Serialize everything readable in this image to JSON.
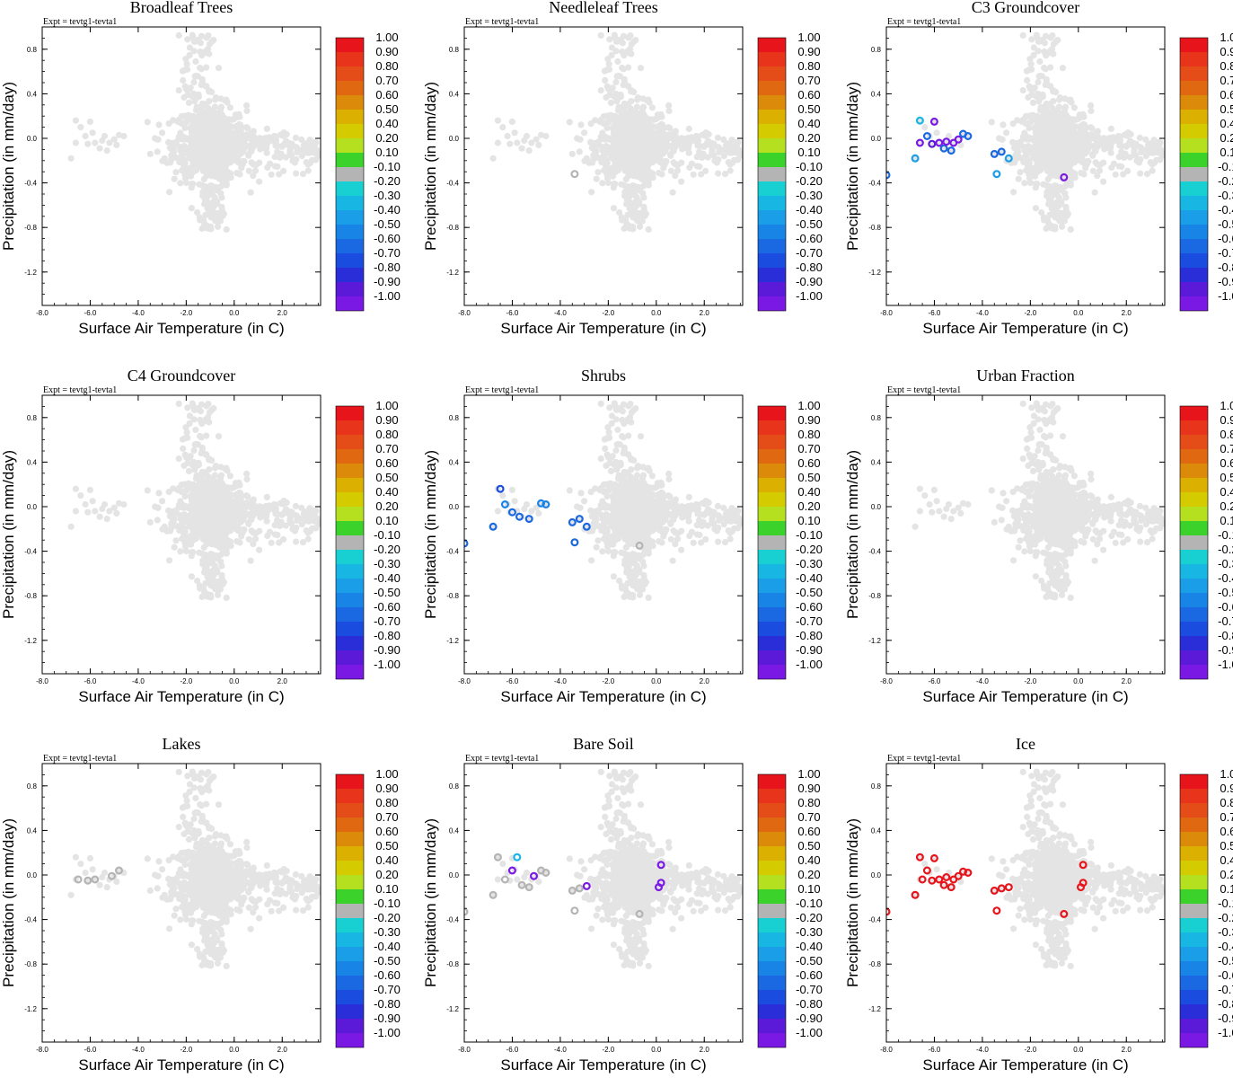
{
  "figure": {
    "experiment_label": "Expt = tevtg1-tevta1",
    "xlabel": "Surface Air Temperature (in C)",
    "ylabel": "Precipitation (in mm/day)",
    "colorbar": {
      "labels": [
        "1.00",
        "0.90",
        "0.80",
        "0.70",
        "0.60",
        "0.50",
        "0.40",
        "0.20",
        "0.10",
        "-0.10",
        "-0.20",
        "-0.30",
        "-0.40",
        "-0.50",
        "-0.60",
        "-0.70",
        "-0.80",
        "-0.90",
        "-1.00"
      ],
      "colors": [
        "#e8141c",
        "#e8341a",
        "#e44c18",
        "#e06810",
        "#dc8a0a",
        "#dcb000",
        "#d4cc00",
        "#b4e020",
        "#3cd22c",
        "#b4b4b4",
        "#18cfd2",
        "#18b6e2",
        "#1a9ee8",
        "#1884e6",
        "#1a68e2",
        "#1a4ce0",
        "#2a2ed8",
        "#5a1ad8",
        "#7a18e4"
      ]
    },
    "background_color": "#e4e4e4"
  },
  "chart_data": [
    {
      "type": "scatter",
      "title": "Broadleaf Trees",
      "xlim": [
        -8,
        3.6
      ],
      "ylim": [
        -1.5,
        1.0
      ],
      "xticks": [
        "-8.0",
        "-6.0",
        "-4.0",
        "-2.0",
        "0.0",
        "2.0"
      ],
      "yticks": [
        "0.8",
        "0.4",
        "0.0",
        "-0.4",
        "-0.8",
        "-1.2"
      ],
      "highlight": []
    },
    {
      "type": "scatter",
      "title": "Needleleaf Trees",
      "xlim": [
        -8,
        3.6
      ],
      "ylim": [
        -1.5,
        1.0
      ],
      "xticks": [
        "-8.0",
        "-6.0",
        "-4.0",
        "-2.0",
        "0.0",
        "2.0"
      ],
      "yticks": [
        "0.8",
        "0.4",
        "0.0",
        "-0.4",
        "-0.8",
        "-1.2"
      ],
      "highlight": [
        {
          "x": -3.4,
          "y": -0.32,
          "v": -0.05
        }
      ]
    },
    {
      "type": "scatter",
      "title": "C3 Groundcover",
      "xlim": [
        -8,
        3.6
      ],
      "ylim": [
        -1.5,
        1.0
      ],
      "xticks": [
        "-8.0",
        "-6.0",
        "-4.0",
        "-2.0",
        "0.0",
        "2.0"
      ],
      "yticks": [
        "0.8",
        "0.4",
        "0.0",
        "-0.4",
        "-0.8",
        "-1.2"
      ],
      "highlight": [
        {
          "x": -8.0,
          "y": -0.33,
          "v": -0.5
        },
        {
          "x": -6.8,
          "y": -0.18,
          "v": -0.3
        },
        {
          "x": -6.6,
          "y": 0.16,
          "v": -0.2
        },
        {
          "x": -6.6,
          "y": -0.04,
          "v": -0.9
        },
        {
          "x": -6.0,
          "y": 0.15,
          "v": -0.9
        },
        {
          "x": -6.3,
          "y": 0.02,
          "v": -0.5
        },
        {
          "x": -6.1,
          "y": -0.05,
          "v": -0.8
        },
        {
          "x": -5.8,
          "y": -0.04,
          "v": -0.9
        },
        {
          "x": -5.6,
          "y": -0.09,
          "v": -0.5
        },
        {
          "x": -5.5,
          "y": -0.03,
          "v": -0.9
        },
        {
          "x": -5.3,
          "y": -0.11,
          "v": -0.5
        },
        {
          "x": -5.2,
          "y": -0.04,
          "v": -0.9
        },
        {
          "x": -5.0,
          "y": -0.01,
          "v": -0.9
        },
        {
          "x": -4.8,
          "y": 0.04,
          "v": -0.5
        },
        {
          "x": -4.6,
          "y": 0.02,
          "v": -0.5
        },
        {
          "x": -3.5,
          "y": -0.14,
          "v": -0.5
        },
        {
          "x": -3.4,
          "y": -0.32,
          "v": -0.3
        },
        {
          "x": -3.2,
          "y": -0.12,
          "v": -0.5
        },
        {
          "x": -2.9,
          "y": -0.18,
          "v": -0.3
        },
        {
          "x": -0.6,
          "y": -0.35,
          "v": -0.9
        }
      ]
    },
    {
      "type": "scatter",
      "title": "C4 Groundcover",
      "xlim": [
        -8,
        3.6
      ],
      "ylim": [
        -1.5,
        1.0
      ],
      "xticks": [
        "-8.0",
        "-6.0",
        "-4.0",
        "-2.0",
        "0.0",
        "2.0"
      ],
      "yticks": [
        "0.8",
        "0.4",
        "0.0",
        "-0.4",
        "-0.8",
        "-1.2"
      ],
      "highlight": []
    },
    {
      "type": "scatter",
      "title": "Shrubs",
      "xlim": [
        -8,
        3.6
      ],
      "ylim": [
        -1.5,
        1.0
      ],
      "xticks": [
        "-8.0",
        "-6.0",
        "-4.0",
        "-2.0",
        "0.0",
        "2.0"
      ],
      "yticks": [
        "0.8",
        "0.4",
        "0.0",
        "-0.4",
        "-0.8",
        "-1.2"
      ],
      "highlight": [
        {
          "x": -8.0,
          "y": -0.33,
          "v": -0.6
        },
        {
          "x": -6.8,
          "y": -0.18,
          "v": -0.5
        },
        {
          "x": -6.5,
          "y": 0.16,
          "v": -0.7
        },
        {
          "x": -6.3,
          "y": 0.02,
          "v": -0.4
        },
        {
          "x": -6.0,
          "y": -0.05,
          "v": -0.5
        },
        {
          "x": -5.7,
          "y": -0.09,
          "v": -0.5
        },
        {
          "x": -5.3,
          "y": -0.11,
          "v": -0.5
        },
        {
          "x": -4.8,
          "y": 0.03,
          "v": -0.4
        },
        {
          "x": -4.6,
          "y": 0.02,
          "v": -0.4
        },
        {
          "x": -3.5,
          "y": -0.14,
          "v": -0.5
        },
        {
          "x": -3.4,
          "y": -0.32,
          "v": -0.6
        },
        {
          "x": -3.2,
          "y": -0.11,
          "v": -0.6
        },
        {
          "x": -2.9,
          "y": -0.18,
          "v": -0.5
        },
        {
          "x": -0.7,
          "y": -0.35,
          "v": -0.05
        }
      ]
    },
    {
      "type": "scatter",
      "title": "Urban Fraction",
      "xlim": [
        -8,
        3.6
      ],
      "ylim": [
        -1.5,
        1.0
      ],
      "xticks": [
        "-8.0",
        "-6.0",
        "-4.0",
        "-2.0",
        "0.0",
        "2.0"
      ],
      "yticks": [
        "0.8",
        "0.4",
        "0.0",
        "-0.4",
        "-0.8",
        "-1.2"
      ],
      "highlight": []
    },
    {
      "type": "scatter",
      "title": "Lakes",
      "xlim": [
        -8,
        3.6
      ],
      "ylim": [
        -1.5,
        1.0
      ],
      "xticks": [
        "-8.0",
        "-6.0",
        "-4.0",
        "-2.0",
        "0.0",
        "2.0"
      ],
      "yticks": [
        "0.8",
        "0.4",
        "0.0",
        "-0.4",
        "-0.8",
        "-1.2"
      ],
      "highlight": [
        {
          "x": -6.5,
          "y": -0.04,
          "v": -0.05
        },
        {
          "x": -6.1,
          "y": -0.05,
          "v": -0.05
        },
        {
          "x": -5.8,
          "y": -0.04,
          "v": -0.05
        },
        {
          "x": -5.1,
          "y": -0.01,
          "v": -0.05
        },
        {
          "x": -4.8,
          "y": 0.04,
          "v": -0.05
        }
      ]
    },
    {
      "type": "scatter",
      "title": "Bare Soil",
      "xlim": [
        -8,
        3.6
      ],
      "ylim": [
        -1.5,
        1.0
      ],
      "xticks": [
        "-8.0",
        "-6.0",
        "-4.0",
        "-2.0",
        "0.0",
        "2.0"
      ],
      "yticks": [
        "0.8",
        "0.4",
        "0.0",
        "-0.4",
        "-0.8",
        "-1.2"
      ],
      "highlight": [
        {
          "x": -8.0,
          "y": -0.33,
          "v": -0.05
        },
        {
          "x": -6.8,
          "y": -0.18,
          "v": -0.05
        },
        {
          "x": -6.6,
          "y": 0.16,
          "v": -0.05
        },
        {
          "x": -6.3,
          "y": -0.04,
          "v": -0.05
        },
        {
          "x": -6.0,
          "y": 0.04,
          "v": -0.9
        },
        {
          "x": -5.8,
          "y": 0.16,
          "v": -0.2
        },
        {
          "x": -5.6,
          "y": -0.09,
          "v": -0.05
        },
        {
          "x": -5.3,
          "y": -0.11,
          "v": -0.05
        },
        {
          "x": -5.1,
          "y": -0.01,
          "v": -0.9
        },
        {
          "x": -4.8,
          "y": 0.04,
          "v": -0.05
        },
        {
          "x": -4.6,
          "y": 0.02,
          "v": -0.05
        },
        {
          "x": -3.5,
          "y": -0.14,
          "v": -0.05
        },
        {
          "x": -3.4,
          "y": -0.32,
          "v": -0.05
        },
        {
          "x": -3.2,
          "y": -0.12,
          "v": -0.05
        },
        {
          "x": -2.9,
          "y": -0.1,
          "v": -0.9
        },
        {
          "x": -0.7,
          "y": -0.35,
          "v": -0.05
        },
        {
          "x": 0.2,
          "y": 0.09,
          "v": -0.9
        },
        {
          "x": 0.2,
          "y": -0.07,
          "v": -0.9
        },
        {
          "x": 0.1,
          "y": -0.11,
          "v": -0.9
        }
      ]
    },
    {
      "type": "scatter",
      "title": "Ice",
      "xlim": [
        -8,
        3.6
      ],
      "ylim": [
        -1.5,
        1.0
      ],
      "xticks": [
        "-8.0",
        "-6.0",
        "-4.0",
        "-2.0",
        "0.0",
        "2.0"
      ],
      "yticks": [
        "0.8",
        "0.4",
        "0.0",
        "-0.4",
        "-0.8",
        "-1.2"
      ],
      "highlight": [
        {
          "x": -8.0,
          "y": -0.33,
          "v": 1.0
        },
        {
          "x": -6.8,
          "y": -0.18,
          "v": 1.0
        },
        {
          "x": -6.6,
          "y": 0.16,
          "v": 1.0
        },
        {
          "x": -6.5,
          "y": -0.04,
          "v": 1.0
        },
        {
          "x": -6.3,
          "y": 0.04,
          "v": 1.0
        },
        {
          "x": -6.0,
          "y": 0.15,
          "v": 1.0
        },
        {
          "x": -6.1,
          "y": -0.05,
          "v": 1.0
        },
        {
          "x": -5.8,
          "y": -0.04,
          "v": 1.0
        },
        {
          "x": -5.6,
          "y": -0.09,
          "v": 1.0
        },
        {
          "x": -5.5,
          "y": -0.02,
          "v": 1.0
        },
        {
          "x": -5.3,
          "y": -0.11,
          "v": 1.0
        },
        {
          "x": -5.2,
          "y": -0.04,
          "v": 1.0
        },
        {
          "x": -5.0,
          "y": -0.01,
          "v": 1.0
        },
        {
          "x": -4.8,
          "y": 0.03,
          "v": 1.0
        },
        {
          "x": -4.6,
          "y": 0.02,
          "v": 1.0
        },
        {
          "x": -3.5,
          "y": -0.14,
          "v": 1.0
        },
        {
          "x": -3.4,
          "y": -0.32,
          "v": 1.0
        },
        {
          "x": -3.2,
          "y": -0.12,
          "v": 1.0
        },
        {
          "x": -2.9,
          "y": -0.11,
          "v": 1.0
        },
        {
          "x": -0.6,
          "y": -0.35,
          "v": 1.0
        },
        {
          "x": 0.2,
          "y": 0.09,
          "v": 1.0
        },
        {
          "x": 0.2,
          "y": -0.07,
          "v": 1.0
        },
        {
          "x": 0.1,
          "y": -0.11,
          "v": 1.0
        }
      ]
    }
  ]
}
